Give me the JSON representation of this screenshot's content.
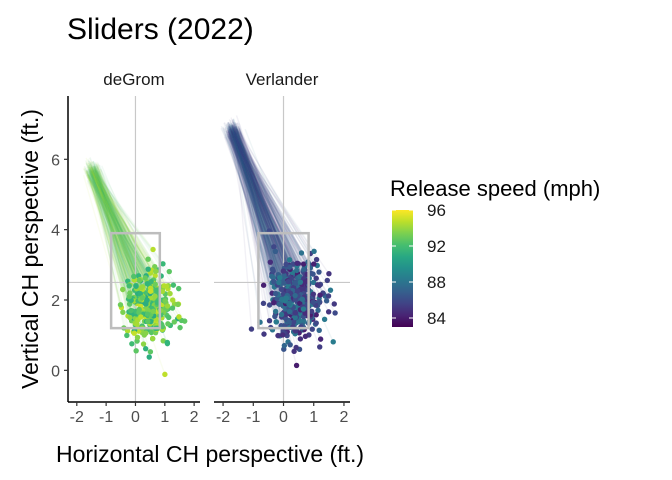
{
  "chart_data": {
    "type": "scatter",
    "title": "Sliders (2022)",
    "xlabel": "Horizontal CH perspective (ft.)",
    "ylabel": "Vertical CH perspective (ft.)",
    "xlim": [
      -2.3,
      2.2
    ],
    "ylim": [
      -0.9,
      7.8
    ],
    "xticks": [
      -2,
      -1,
      0,
      1,
      2
    ],
    "yticks": [
      0,
      2,
      4,
      6
    ],
    "reference_lines": {
      "x": 0,
      "y": 2.5
    },
    "strike_zone": {
      "x": [
        -0.83,
        0.83
      ],
      "y": [
        1.2,
        3.9
      ]
    },
    "panels": [
      {
        "name": "deGrom",
        "release_point": {
          "x": -1.5,
          "y": 5.7
        },
        "speed_range_mph": [
          91,
          95
        ],
        "location_center": {
          "x": 0.45,
          "y": 1.8
        },
        "location_spread": {
          "x": 0.75,
          "y": 0.95
        },
        "n_points": 320
      },
      {
        "name": "Verlander",
        "release_point": {
          "x": -1.7,
          "y": 6.85
        },
        "speed_range_mph": [
          84,
          88.5
        ],
        "location_center": {
          "x": 0.4,
          "y": 2.0
        },
        "location_spread": {
          "x": 0.8,
          "y": 1.0
        },
        "n_points": 420
      }
    ],
    "legend": {
      "title": "Release speed (mph)",
      "ticks": [
        96,
        92,
        88,
        84
      ],
      "range": [
        83,
        96
      ],
      "colormap": "viridis",
      "placement": "right"
    }
  }
}
